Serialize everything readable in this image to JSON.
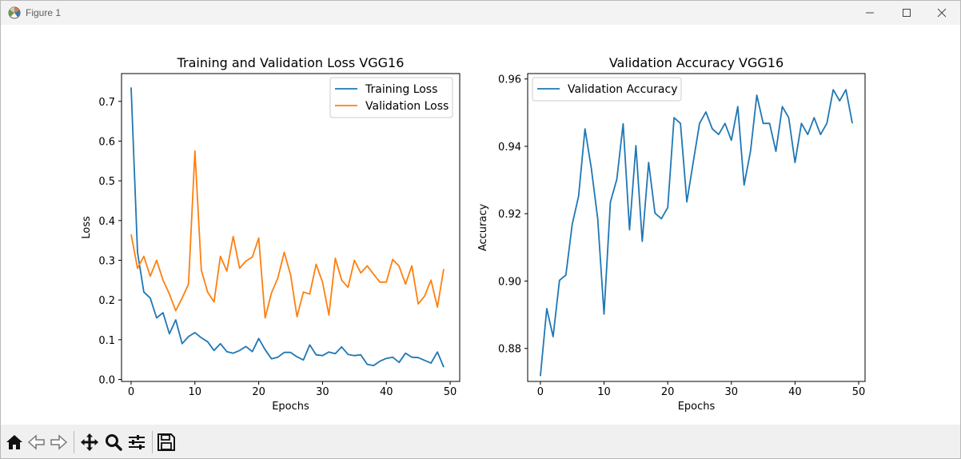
{
  "window": {
    "title": "Figure 1"
  },
  "toolbar": {
    "buttons": [
      "home-icon",
      "back-arrow-icon",
      "forward-arrow-icon",
      "pan-move-icon",
      "zoom-magnifier-icon",
      "configure-subplots-icon",
      "save-floppy-icon"
    ]
  },
  "colors": {
    "training": "#1f77b4",
    "validation": "#ff7f0e"
  },
  "chart_data": [
    {
      "type": "line",
      "title": "Training and Validation Loss VGG16",
      "xlabel": "Epochs",
      "ylabel": "Loss",
      "xlim": [
        -1.5,
        51.5
      ],
      "ylim": [
        -0.005,
        0.77
      ],
      "xticks": [
        0,
        10,
        20,
        30,
        40,
        50
      ],
      "yticks": [
        0.0,
        0.1,
        0.2,
        0.3,
        0.4,
        0.5,
        0.6,
        0.7
      ],
      "ytick_labels": [
        "0.0",
        "0.1",
        "0.2",
        "0.3",
        "0.4",
        "0.5",
        "0.6",
        "0.7"
      ],
      "legend": "upper right",
      "series": [
        {
          "name": "Training Loss",
          "color": "#1f77b4",
          "x": [
            0,
            1,
            2,
            3,
            4,
            5,
            6,
            7,
            8,
            9,
            10,
            11,
            12,
            13,
            14,
            15,
            16,
            17,
            18,
            19,
            20,
            21,
            22,
            23,
            24,
            25,
            26,
            27,
            28,
            29,
            30,
            31,
            32,
            33,
            34,
            35,
            36,
            37,
            38,
            39,
            40,
            41,
            42,
            43,
            44,
            45,
            46,
            47,
            48,
            49
          ],
          "values": [
            0.735,
            0.32,
            0.22,
            0.205,
            0.155,
            0.168,
            0.115,
            0.15,
            0.09,
            0.108,
            0.118,
            0.105,
            0.095,
            0.073,
            0.09,
            0.07,
            0.066,
            0.073,
            0.083,
            0.07,
            0.103,
            0.075,
            0.052,
            0.056,
            0.068,
            0.068,
            0.057,
            0.049,
            0.087,
            0.062,
            0.06,
            0.069,
            0.065,
            0.082,
            0.063,
            0.06,
            0.062,
            0.038,
            0.035,
            0.046,
            0.053,
            0.056,
            0.043,
            0.066,
            0.056,
            0.055,
            0.048,
            0.041,
            0.069,
            0.031
          ]
        },
        {
          "name": "Validation Loss",
          "color": "#ff7f0e",
          "x": [
            0,
            1,
            2,
            3,
            4,
            5,
            6,
            7,
            8,
            9,
            10,
            11,
            12,
            13,
            14,
            15,
            16,
            17,
            18,
            19,
            20,
            21,
            22,
            23,
            24,
            25,
            26,
            27,
            28,
            29,
            30,
            31,
            32,
            33,
            34,
            35,
            36,
            37,
            38,
            39,
            40,
            41,
            42,
            43,
            44,
            45,
            46,
            47,
            48,
            49
          ],
          "values": [
            0.365,
            0.28,
            0.31,
            0.26,
            0.3,
            0.25,
            0.215,
            0.173,
            0.205,
            0.24,
            0.575,
            0.275,
            0.22,
            0.195,
            0.31,
            0.273,
            0.36,
            0.28,
            0.298,
            0.308,
            0.356,
            0.155,
            0.218,
            0.255,
            0.32,
            0.263,
            0.158,
            0.22,
            0.215,
            0.29,
            0.245,
            0.162,
            0.305,
            0.25,
            0.232,
            0.3,
            0.268,
            0.286,
            0.265,
            0.245,
            0.245,
            0.302,
            0.285,
            0.24,
            0.286,
            0.19,
            0.21,
            0.25,
            0.182,
            0.278
          ]
        }
      ]
    },
    {
      "type": "line",
      "title": "Validation Accuracy VGG16",
      "xlabel": "Epochs",
      "ylabel": "Accuracy",
      "xlim": [
        -2,
        51
      ],
      "ylim": [
        0.8702,
        0.9616
      ],
      "xticks": [
        0,
        10,
        20,
        30,
        40,
        50
      ],
      "yticks": [
        0.88,
        0.9,
        0.92,
        0.94,
        0.96
      ],
      "ytick_labels": [
        "0.88",
        "0.90",
        "0.92",
        "0.94",
        "0.96"
      ],
      "legend": "upper left",
      "series": [
        {
          "name": "Validation Accuracy",
          "color": "#1f77b4",
          "x": [
            0,
            1,
            2,
            3,
            4,
            5,
            6,
            7,
            8,
            9,
            10,
            11,
            12,
            13,
            14,
            15,
            16,
            17,
            18,
            19,
            20,
            21,
            22,
            23,
            24,
            25,
            26,
            27,
            28,
            29,
            30,
            31,
            32,
            33,
            34,
            35,
            36,
            37,
            38,
            39,
            40,
            41,
            42,
            43,
            44,
            45,
            46,
            47,
            48,
            49
          ],
          "values": [
            0.8718,
            0.8918,
            0.8835,
            0.9002,
            0.9018,
            0.9168,
            0.9252,
            0.9452,
            0.9335,
            0.9185,
            0.8902,
            0.9235,
            0.9302,
            0.9467,
            0.9152,
            0.9402,
            0.9118,
            0.9352,
            0.9202,
            0.9185,
            0.9218,
            0.9485,
            0.9468,
            0.9235,
            0.9352,
            0.9468,
            0.9502,
            0.9452,
            0.9435,
            0.9468,
            0.9418,
            0.9518,
            0.9285,
            0.9385,
            0.9552,
            0.9468,
            0.9468,
            0.9385,
            0.9518,
            0.9485,
            0.9352,
            0.9468,
            0.9435,
            0.9485,
            0.9435,
            0.9468,
            0.9568,
            0.9535,
            0.9568,
            0.9468
          ]
        }
      ]
    }
  ]
}
